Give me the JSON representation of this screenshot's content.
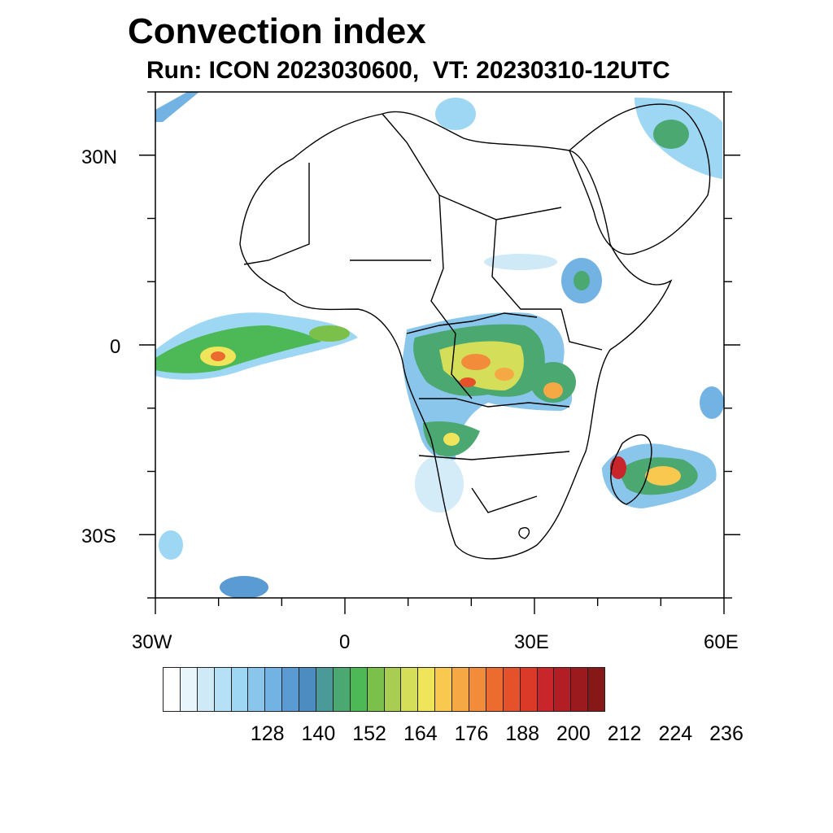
{
  "title": "Convection index",
  "subtitle": "Run: ICON 2023030600,  VT: 20230310-12UTC",
  "map": {
    "extent": {
      "lon": [
        -30,
        60
      ],
      "lat": [
        -40,
        40
      ]
    },
    "lat_labels": [
      "30N",
      "0",
      "30S"
    ],
    "lon_labels": [
      "30W",
      "0",
      "30E",
      "60E"
    ]
  },
  "colorbar": {
    "colors": [
      "#ffffff",
      "#e8f5fb",
      "#cfe9f7",
      "#b6e0f5",
      "#9dd7f3",
      "#8ac6ec",
      "#73b3e4",
      "#5a9bd4",
      "#4c8cc0",
      "#4b9a9a",
      "#4aa870",
      "#4db856",
      "#7cc04c",
      "#a8cd52",
      "#d4de58",
      "#f0e55a",
      "#f8c94e",
      "#f6a844",
      "#f28c3a",
      "#ec6c30",
      "#e4512a",
      "#dc3a28",
      "#c8262a",
      "#b21e24",
      "#9a1a1e",
      "#861818"
    ],
    "labels": [
      "128",
      "140",
      "152",
      "164",
      "176",
      "188",
      "200",
      "212",
      "224",
      "236"
    ]
  }
}
